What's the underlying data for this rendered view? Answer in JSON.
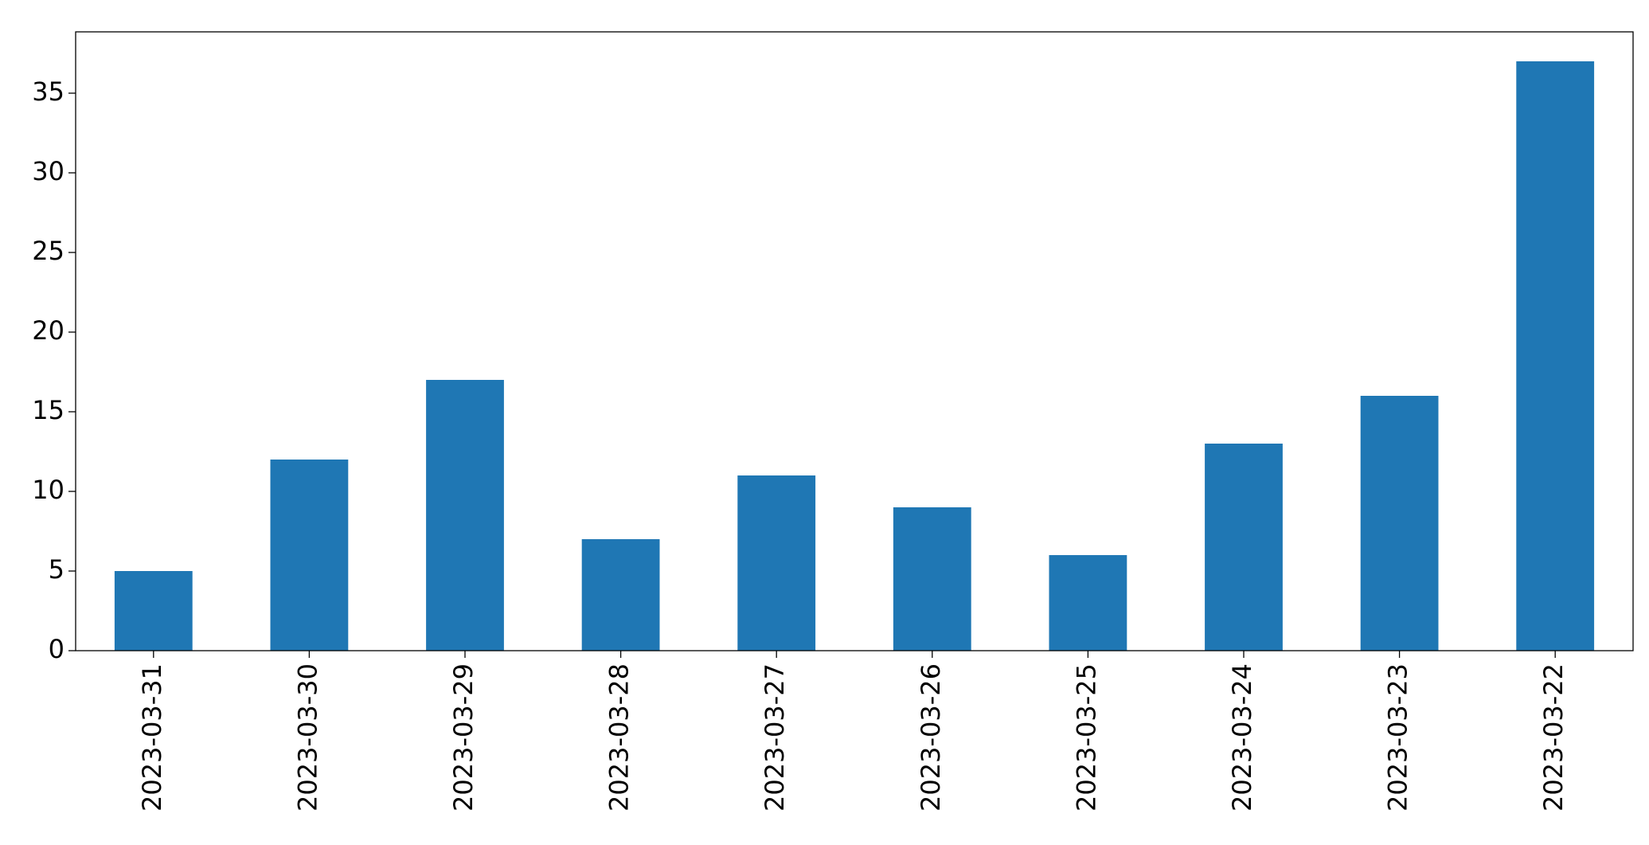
{
  "chart_data": {
    "type": "bar",
    "categories": [
      "2023-03-31",
      "2023-03-30",
      "2023-03-29",
      "2023-03-28",
      "2023-03-27",
      "2023-03-26",
      "2023-03-25",
      "2023-03-24",
      "2023-03-23",
      "2023-03-22"
    ],
    "values": [
      5,
      12,
      17,
      7,
      11,
      9,
      6,
      13,
      16,
      37
    ],
    "color": "#1f77b4",
    "ylim": [
      0,
      38.85
    ],
    "yticks": [
      0,
      5,
      10,
      15,
      20,
      25,
      30,
      35
    ],
    "grid": false
  }
}
